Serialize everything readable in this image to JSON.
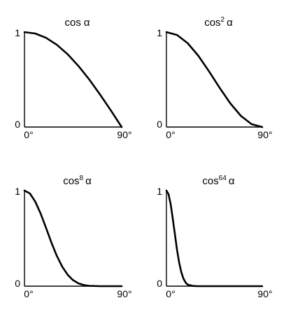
{
  "chart_data": [
    {
      "type": "line",
      "title_base": "cos",
      "title_exp": "",
      "title_var": "α",
      "xlim": [
        0,
        90
      ],
      "ylim": [
        0,
        1
      ],
      "x_ticks": [
        "0°",
        "90°"
      ],
      "y_ticks": [
        "0",
        "1"
      ],
      "x": [
        0,
        10,
        20,
        30,
        40,
        50,
        60,
        70,
        80,
        90
      ],
      "y": [
        1,
        0.985,
        0.94,
        0.866,
        0.766,
        0.643,
        0.5,
        0.342,
        0.174,
        0
      ]
    },
    {
      "type": "line",
      "title_base": "cos",
      "title_exp": "2",
      "title_var": "α",
      "xlim": [
        0,
        90
      ],
      "ylim": [
        0,
        1
      ],
      "x_ticks": [
        "0°",
        "90°"
      ],
      "y_ticks": [
        "0",
        "1"
      ],
      "x": [
        0,
        10,
        20,
        30,
        40,
        50,
        60,
        70,
        80,
        90
      ],
      "y": [
        1,
        0.97,
        0.883,
        0.75,
        0.587,
        0.413,
        0.25,
        0.117,
        0.03,
        0
      ]
    },
    {
      "type": "line",
      "title_base": "cos",
      "title_exp": "8",
      "title_var": "α",
      "xlim": [
        0,
        90
      ],
      "ylim": [
        0,
        1
      ],
      "x_ticks": [
        "0°",
        "90°"
      ],
      "y_ticks": [
        "0",
        "1"
      ],
      "x": [
        0,
        5,
        10,
        15,
        20,
        25,
        30,
        35,
        40,
        45,
        50,
        55,
        60,
        70,
        80,
        90
      ],
      "y": [
        1,
        0.97,
        0.885,
        0.758,
        0.608,
        0.455,
        0.316,
        0.203,
        0.119,
        0.063,
        0.029,
        0.012,
        0.004,
        0,
        0,
        0
      ]
    },
    {
      "type": "line",
      "title_base": "cos",
      "title_exp": "64",
      "title_var": "α",
      "xlim": [
        0,
        90
      ],
      "ylim": [
        0,
        1
      ],
      "x_ticks": [
        "0°",
        "90°"
      ],
      "y_ticks": [
        "0",
        "1"
      ],
      "x": [
        0,
        2,
        4,
        6,
        8,
        10,
        12,
        14,
        16,
        18,
        20,
        25,
        30,
        45,
        60,
        90
      ],
      "y": [
        1,
        0.962,
        0.856,
        0.705,
        0.539,
        0.378,
        0.244,
        0.145,
        0.078,
        0.038,
        0.017,
        0.002,
        0,
        0,
        0,
        0
      ]
    }
  ]
}
